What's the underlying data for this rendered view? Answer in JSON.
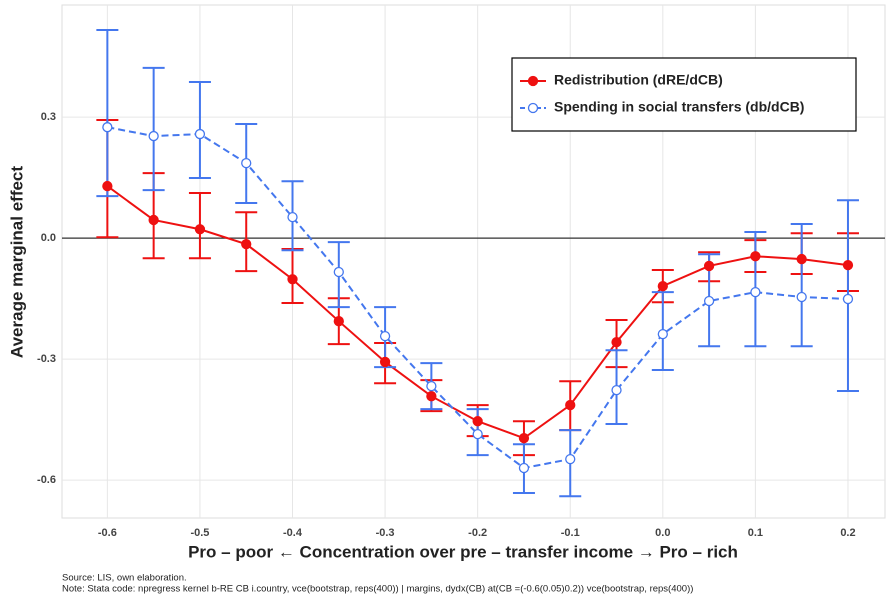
{
  "chart_data": {
    "type": "errorbar-line",
    "x_label": "Pro – poor ← Concentration over pre – transfer income → Pro – rich",
    "y_label": "Average marginal effect",
    "notes": [
      "Source: LIS, own elaboration.",
      "Note: Stata code: npregress kernel b-RE CB i.country, vce(bootstrap, reps(400)) | margins, dydx(CB) at(CB =(-0.6(0.05)0.2)) vce(bootstrap, reps(400))"
    ],
    "x": [
      -0.6,
      -0.55,
      -0.5,
      -0.45,
      -0.4,
      -0.35,
      -0.3,
      -0.25,
      -0.2,
      -0.15,
      -0.1,
      -0.05,
      0,
      0.05,
      0.1,
      0.15,
      0.2
    ],
    "xlim": [
      -0.649,
      0.24
    ],
    "ylim": [
      -0.694,
      0.578
    ],
    "xticks": [
      -0.6,
      -0.5,
      -0.4,
      -0.3,
      -0.2,
      -0.1,
      {
        "value": 0,
        "label": "0.0"
      },
      0.1,
      0.2
    ],
    "yticks": [
      -0.6,
      -0.3,
      {
        "value": 0,
        "label": "0.0"
      },
      0.3
    ],
    "hline": 0,
    "grid": true,
    "legend_position": "top-right",
    "series": [
      {
        "name": "Redistribution (dRE/dCB)",
        "color": "#ee1111",
        "marker": "filled",
        "dashed": false,
        "values": [
          0.129,
          0.045,
          0.022,
          -0.015,
          -0.102,
          -0.206,
          -0.307,
          -0.392,
          -0.454,
          -0.496,
          -0.414,
          -0.258,
          -0.119,
          -0.069,
          -0.045,
          -0.052,
          -0.067
        ],
        "lower": [
          0.002,
          -0.05,
          -0.05,
          -0.082,
          -0.161,
          -0.263,
          -0.36,
          -0.429,
          -0.491,
          -0.538,
          -0.476,
          -0.32,
          -0.159,
          -0.107,
          -0.084,
          -0.089,
          -0.131
        ],
        "upper": [
          0.293,
          0.161,
          0.112,
          0.064,
          -0.027,
          -0.149,
          -0.26,
          -0.352,
          -0.414,
          -0.454,
          -0.355,
          -0.203,
          -0.079,
          -0.035,
          -0.005,
          0.012,
          0.012
        ]
      },
      {
        "name": "Spending in social transfers (db/dCB)",
        "color": "#4477ee",
        "marker": "open",
        "dashed": true,
        "values": [
          0.275,
          0.253,
          0.258,
          0.186,
          0.052,
          -0.084,
          -0.243,
          -0.367,
          -0.486,
          -0.57,
          -0.548,
          -0.377,
          -0.238,
          -0.156,
          -0.134,
          -0.146,
          -0.151
        ],
        "lower": [
          0.104,
          0.119,
          0.149,
          0.087,
          -0.03,
          -0.171,
          -0.32,
          -0.424,
          -0.538,
          -0.632,
          -0.64,
          -0.461,
          -0.327,
          -0.268,
          -0.268,
          -0.268,
          -0.379
        ],
        "upper": [
          0.516,
          0.422,
          0.387,
          0.283,
          0.141,
          -0.01,
          -0.171,
          -0.31,
          -0.424,
          -0.511,
          -0.476,
          -0.278,
          -0.134,
          -0.04,
          0.015,
          0.035,
          0.094
        ]
      }
    ]
  }
}
